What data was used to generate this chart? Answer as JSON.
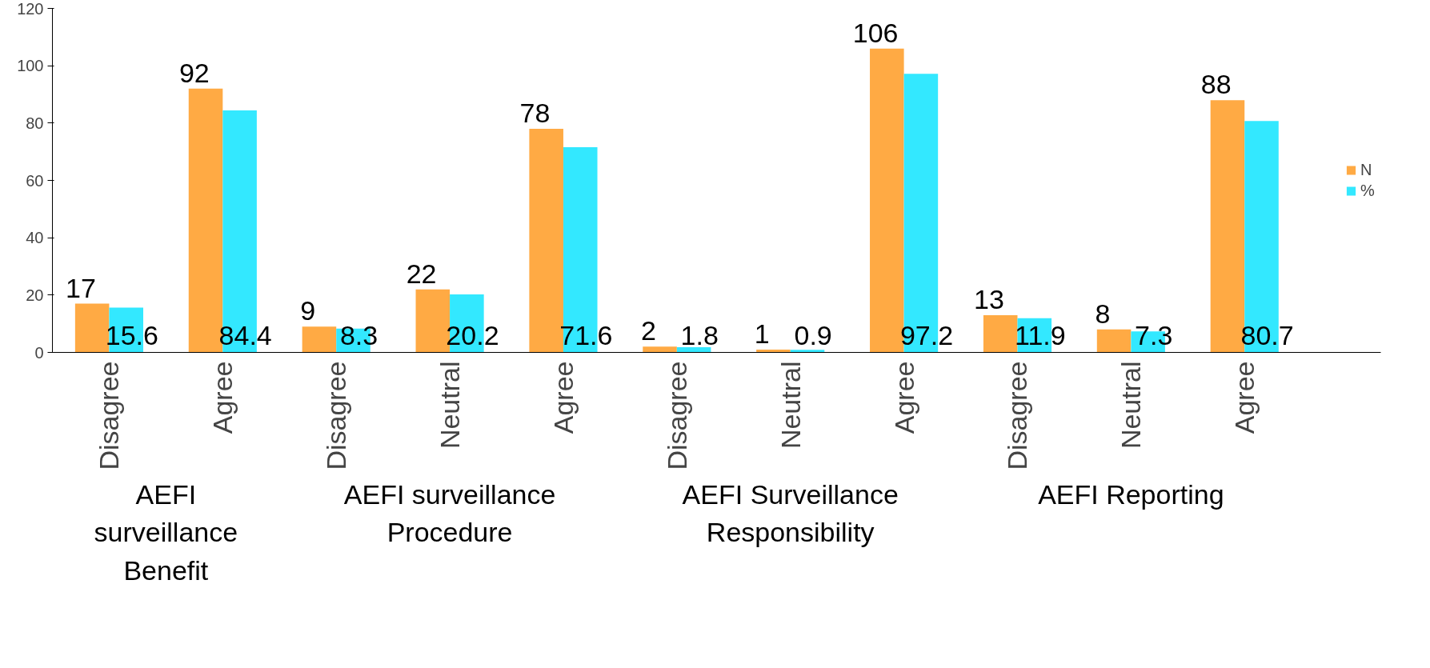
{
  "chart_data": {
    "type": "bar",
    "categories": [
      "Disagree",
      "Agree",
      "Disagree",
      "Neutral",
      "Agree",
      "Disagree",
      "Neutral",
      "Agree",
      "Disagree",
      "Neutral",
      "Agree"
    ],
    "series": [
      {
        "name": "N",
        "color": "#ffaa44",
        "values": [
          17,
          92,
          9,
          22,
          78,
          2,
          1,
          106,
          13,
          8,
          88
        ]
      },
      {
        "name": "%",
        "color": "#33e8ff",
        "values": [
          15.6,
          84.4,
          8.3,
          20.2,
          71.6,
          1.8,
          0.9,
          97.2,
          11.9,
          7.3,
          80.7
        ]
      }
    ],
    "ylim": [
      0,
      120
    ],
    "yticks": [
      0,
      20,
      40,
      60,
      80,
      100,
      120
    ],
    "grid": false,
    "legend": "right",
    "data_labels": true,
    "annotations": [
      "AEFI surveillance Benefit",
      "AEFI surveillance Procedure",
      "AEFI Surveillance Responsibility",
      "AEFI Reporting"
    ]
  }
}
